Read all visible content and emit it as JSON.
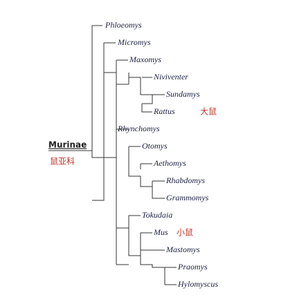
{
  "root": {
    "name": "Murinae",
    "common_name": "鼠亚科"
  },
  "taxa": [
    "Phloeomys",
    "Micromys",
    "Maxomys",
    "Niviventer",
    "Sundamys",
    "Rattus",
    "Rhynchomys",
    "Otomys",
    "Aethomys",
    "Rhabdomys",
    "Grammomys",
    "Tokudaia",
    "Mus",
    "Mastomys",
    "Praomys",
    "Hylomyscus"
  ],
  "common_names": {
    "rattus": "大鼠",
    "mus": "小鼠"
  }
}
